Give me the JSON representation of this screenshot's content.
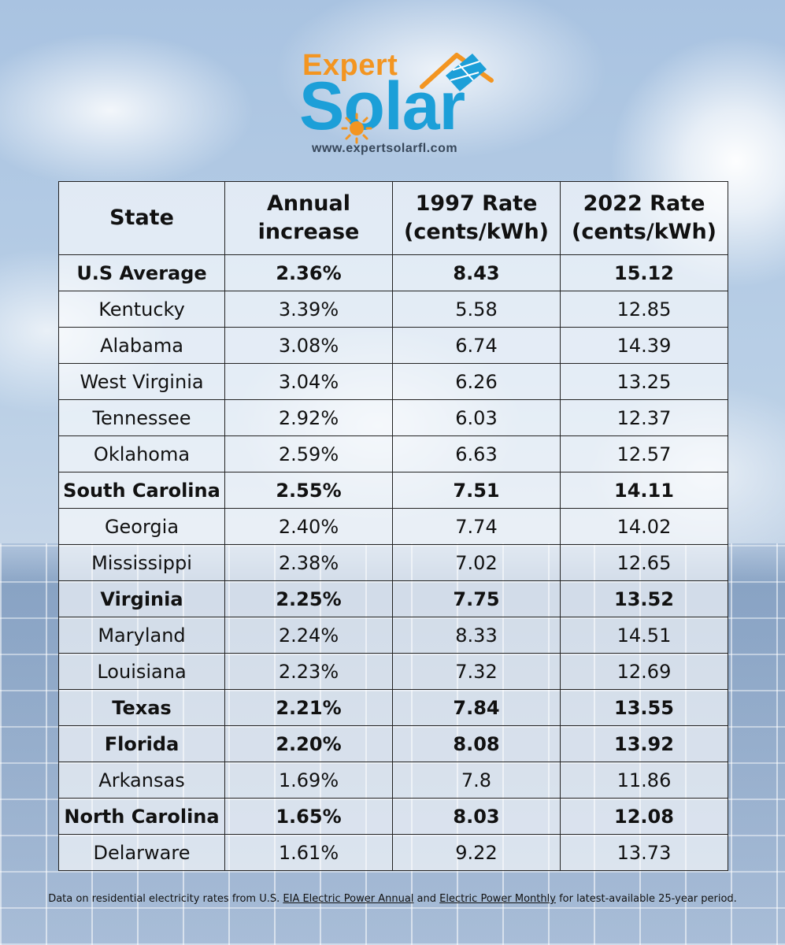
{
  "logo": {
    "word1": "Expert",
    "word2": "Solar",
    "url": "www.expertsolarfl.com",
    "colors": {
      "orange": "#f39521",
      "blue": "#1c9fd8",
      "text": "#37475a"
    }
  },
  "chart_data": {
    "type": "table",
    "columns": [
      "State",
      "Annual increase",
      "1997 Rate (cents/kWh)",
      "2022 Rate (cents/kWh)"
    ],
    "rows": [
      {
        "state": "U.S Average",
        "increase": "2.36%",
        "rate_1997": "8.43",
        "rate_2022": "15.12",
        "bold": true
      },
      {
        "state": "Kentucky",
        "increase": "3.39%",
        "rate_1997": "5.58",
        "rate_2022": "12.85",
        "bold": false
      },
      {
        "state": "Alabama",
        "increase": "3.08%",
        "rate_1997": "6.74",
        "rate_2022": "14.39",
        "bold": false
      },
      {
        "state": "West Virginia",
        "increase": "3.04%",
        "rate_1997": "6.26",
        "rate_2022": "13.25",
        "bold": false
      },
      {
        "state": "Tennessee",
        "increase": "2.92%",
        "rate_1997": "6.03",
        "rate_2022": "12.37",
        "bold": false
      },
      {
        "state": "Oklahoma",
        "increase": "2.59%",
        "rate_1997": "6.63",
        "rate_2022": "12.57",
        "bold": false
      },
      {
        "state": "South Carolina",
        "increase": "2.55%",
        "rate_1997": "7.51",
        "rate_2022": "14.11",
        "bold": true
      },
      {
        "state": "Georgia",
        "increase": "2.40%",
        "rate_1997": "7.74",
        "rate_2022": "14.02",
        "bold": false
      },
      {
        "state": "Mississippi",
        "increase": "2.38%",
        "rate_1997": "7.02",
        "rate_2022": "12.65",
        "bold": false
      },
      {
        "state": "Virginia",
        "increase": "2.25%",
        "rate_1997": "7.75",
        "rate_2022": "13.52",
        "bold": true
      },
      {
        "state": "Maryland",
        "increase": "2.24%",
        "rate_1997": "8.33",
        "rate_2022": "14.51",
        "bold": false
      },
      {
        "state": "Louisiana",
        "increase": "2.23%",
        "rate_1997": "7.32",
        "rate_2022": "12.69",
        "bold": false
      },
      {
        "state": "Texas",
        "increase": "2.21%",
        "rate_1997": "7.84",
        "rate_2022": "13.55",
        "bold": true
      },
      {
        "state": "Florida",
        "increase": "2.20%",
        "rate_1997": "8.08",
        "rate_2022": "13.92",
        "bold": true
      },
      {
        "state": "Arkansas",
        "increase": "1.69%",
        "rate_1997": "7.8",
        "rate_2022": "11.86",
        "bold": false
      },
      {
        "state": "North Carolina",
        "increase": "1.65%",
        "rate_1997": "8.03",
        "rate_2022": "12.08",
        "bold": true
      },
      {
        "state": "Delarware",
        "increase": "1.61%",
        "rate_1997": "9.22",
        "rate_2022": "13.73",
        "bold": false
      }
    ]
  },
  "header": {
    "col1": "State",
    "col2_line1": "Annual",
    "col2_line2": "increase",
    "col3_line1": "1997 Rate",
    "col3_line2": "(cents/kWh)",
    "col4_line1": "2022 Rate",
    "col4_line2": "(cents/kWh)"
  },
  "footnote": {
    "part1": "Data on residential electricity rates from U.S. ",
    "link1": "EIA Electric Power Annual",
    "part2": " and ",
    "link2": "Electric Power Monthly",
    "part3": " for latest-available 25-year period."
  }
}
